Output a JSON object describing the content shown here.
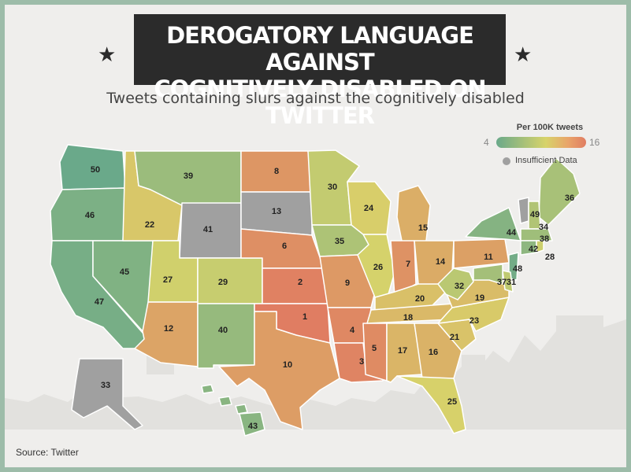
{
  "title_line1": "DEROGATORY LANGUAGE AGAINST",
  "title_line2": "COGNITIVELY DISABLED ON TWITTER",
  "subtitle": "Tweets containing slurs against the cognitively disabled",
  "star_glyph": "★",
  "legend": {
    "title": "Per 100K tweets",
    "min": "4",
    "max": "16",
    "insufficient": "Insufficient Data"
  },
  "source": "Source: Twitter",
  "colors": {
    "low": "#6aa98a",
    "mid": "#d7d36a",
    "high": "#e07d62",
    "insufficient": "#a0a0a0"
  },
  "chart_data": {
    "type": "heatmap",
    "scale_min": 4,
    "scale_max": 16,
    "states": [
      {
        "id": "WA",
        "value": "50"
      },
      {
        "id": "OR",
        "value": "46"
      },
      {
        "id": "CA",
        "value": "47"
      },
      {
        "id": "NV",
        "value": "45"
      },
      {
        "id": "ID",
        "value": "22"
      },
      {
        "id": "MT",
        "value": "39"
      },
      {
        "id": "WY",
        "value": "41",
        "insufficient": true
      },
      {
        "id": "UT",
        "value": "27"
      },
      {
        "id": "AZ",
        "value": "12"
      },
      {
        "id": "CO",
        "value": "29"
      },
      {
        "id": "NM",
        "value": "40"
      },
      {
        "id": "ND",
        "value": "8"
      },
      {
        "id": "SD",
        "value": "13",
        "insufficient": true
      },
      {
        "id": "NE",
        "value": "6"
      },
      {
        "id": "KS",
        "value": "2"
      },
      {
        "id": "OK",
        "value": "1"
      },
      {
        "id": "TX",
        "value": "10"
      },
      {
        "id": "MN",
        "value": "30"
      },
      {
        "id": "IA",
        "value": "35"
      },
      {
        "id": "MO",
        "value": "9"
      },
      {
        "id": "AR",
        "value": "4"
      },
      {
        "id": "LA",
        "value": "3"
      },
      {
        "id": "WI",
        "value": "24"
      },
      {
        "id": "IL",
        "value": "26"
      },
      {
        "id": "MS",
        "value": "5"
      },
      {
        "id": "MI",
        "value": "15"
      },
      {
        "id": "IN",
        "value": "7"
      },
      {
        "id": "KY",
        "value": "20"
      },
      {
        "id": "TN",
        "value": "18"
      },
      {
        "id": "AL",
        "value": "17"
      },
      {
        "id": "OH",
        "value": "14"
      },
      {
        "id": "GA",
        "value": "16"
      },
      {
        "id": "FL",
        "value": "25"
      },
      {
        "id": "SC",
        "value": "21"
      },
      {
        "id": "NC",
        "value": "23"
      },
      {
        "id": "VA",
        "value": "19"
      },
      {
        "id": "WV",
        "value": "32"
      },
      {
        "id": "PA",
        "value": "11"
      },
      {
        "id": "NY",
        "value": "44"
      },
      {
        "id": "VT",
        "value": "49",
        "insufficient": true
      },
      {
        "id": "ME",
        "value": "36"
      },
      {
        "id": "NH",
        "value": "34"
      },
      {
        "id": "MA",
        "value": "38"
      },
      {
        "id": "CT",
        "value": "42"
      },
      {
        "id": "RI",
        "value": "28"
      },
      {
        "id": "NJ",
        "value": "48"
      },
      {
        "id": "DE",
        "value": "31"
      },
      {
        "id": "MD",
        "value": "37"
      },
      {
        "id": "AK",
        "value": "33",
        "insufficient": true
      },
      {
        "id": "HI",
        "value": "43"
      }
    ]
  }
}
